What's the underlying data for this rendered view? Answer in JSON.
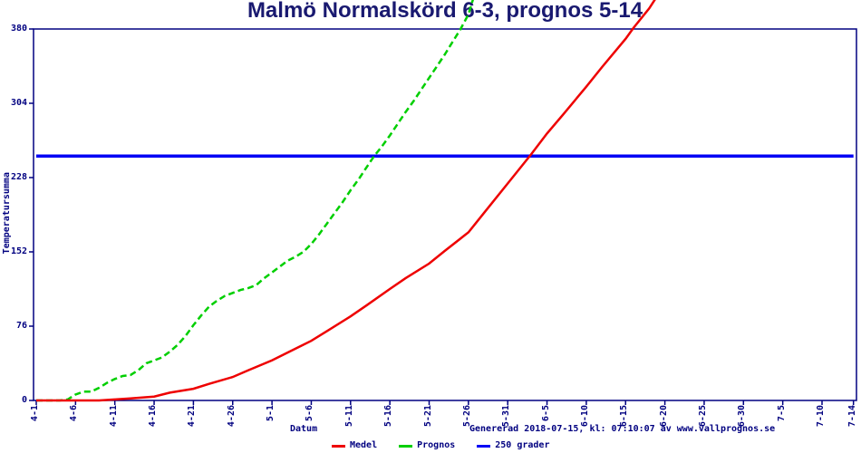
{
  "title": "Malmö Normalskörd 6-3, prognos 5-14",
  "footer": "Genererad 2018-07-15, kl: 07:10:07 av www.vallprognos.se",
  "colors": {
    "title_text": "#191970",
    "axis_and_text": "#000080",
    "medel": "#ee0000",
    "prognos": "#00cf00",
    "threshold": "#0000f5"
  },
  "chart_data": {
    "type": "line",
    "title": "Malmö Normalskörd 6-3, prognos 5-14",
    "xlabel": "Datum",
    "ylabel": "Temperatursumma",
    "ylim": [
      0,
      380
    ],
    "grid": false,
    "legend_position": "bottom",
    "y_ticks": [
      0,
      76,
      152,
      228,
      304,
      380
    ],
    "x_ticks": [
      {
        "label": "4-1",
        "day": 0
      },
      {
        "label": "4-6",
        "day": 5
      },
      {
        "label": "4-11",
        "day": 10
      },
      {
        "label": "4-16",
        "day": 15
      },
      {
        "label": "4-21",
        "day": 20
      },
      {
        "label": "4-26",
        "day": 25
      },
      {
        "label": "5-1",
        "day": 30
      },
      {
        "label": "5-6",
        "day": 35
      },
      {
        "label": "5-11",
        "day": 40
      },
      {
        "label": "5-16",
        "day": 45
      },
      {
        "label": "5-21",
        "day": 50
      },
      {
        "label": "5-26",
        "day": 55
      },
      {
        "label": "5-31",
        "day": 60
      },
      {
        "label": "6-5",
        "day": 65
      },
      {
        "label": "6-10",
        "day": 70
      },
      {
        "label": "6-15",
        "day": 75
      },
      {
        "label": "6-20",
        "day": 80
      },
      {
        "label": "6-25",
        "day": 85
      },
      {
        "label": "6-30",
        "day": 90
      },
      {
        "label": "7-5",
        "day": 95
      },
      {
        "label": "7-10",
        "day": 100
      },
      {
        "label": "7-14",
        "day": 104
      }
    ],
    "x_axis_note": "days counted from 4-1; ticks every 5 days, last interval 4 days",
    "series": [
      {
        "name": "Medel",
        "color": "#ee0000",
        "style": "solid",
        "crosses_250_on": "6-3",
        "points": [
          [
            0,
            0
          ],
          [
            3,
            0
          ],
          [
            6,
            0
          ],
          [
            8,
            0
          ],
          [
            10,
            1
          ],
          [
            12,
            2
          ],
          [
            15,
            4
          ],
          [
            17,
            8
          ],
          [
            20,
            12
          ],
          [
            22,
            17
          ],
          [
            25,
            24
          ],
          [
            27,
            31
          ],
          [
            30,
            41
          ],
          [
            32,
            49
          ],
          [
            35,
            61
          ],
          [
            37,
            71
          ],
          [
            40,
            86
          ],
          [
            42,
            97
          ],
          [
            45,
            114
          ],
          [
            47,
            125
          ],
          [
            50,
            140
          ],
          [
            52,
            153
          ],
          [
            55,
            172
          ],
          [
            57,
            192
          ],
          [
            60,
            222
          ],
          [
            63,
            252
          ],
          [
            65,
            273
          ],
          [
            67,
            292
          ],
          [
            70,
            321
          ],
          [
            72,
            341
          ],
          [
            75,
            370
          ],
          [
            76,
            381
          ],
          [
            78,
            401
          ],
          [
            78.8,
            411
          ]
        ]
      },
      {
        "name": "Prognos",
        "color": "#00cf00",
        "style": "dashed",
        "crosses_250_on": "5-14",
        "points": [
          [
            0,
            0
          ],
          [
            1,
            0
          ],
          [
            2,
            0
          ],
          [
            3,
            0
          ],
          [
            4,
            1
          ],
          [
            5,
            6
          ],
          [
            6,
            9
          ],
          [
            7,
            9
          ],
          [
            8,
            13
          ],
          [
            9,
            18
          ],
          [
            10,
            22
          ],
          [
            11,
            25
          ],
          [
            12,
            26
          ],
          [
            13,
            31
          ],
          [
            14,
            38
          ],
          [
            15,
            41
          ],
          [
            16,
            44
          ],
          [
            17,
            50
          ],
          [
            18,
            57
          ],
          [
            19,
            66
          ],
          [
            20,
            77
          ],
          [
            21,
            87
          ],
          [
            22,
            96
          ],
          [
            23,
            102
          ],
          [
            24,
            107
          ],
          [
            25,
            110
          ],
          [
            26,
            113
          ],
          [
            27,
            115
          ],
          [
            28,
            118
          ],
          [
            29,
            125
          ],
          [
            30,
            131
          ],
          [
            31,
            137
          ],
          [
            32,
            143
          ],
          [
            33,
            147
          ],
          [
            34,
            152
          ],
          [
            35,
            160
          ],
          [
            36,
            170
          ],
          [
            37,
            181
          ],
          [
            38,
            192
          ],
          [
            39,
            203
          ],
          [
            40,
            215
          ],
          [
            41,
            226
          ],
          [
            42,
            238
          ],
          [
            43,
            250
          ],
          [
            44,
            260
          ],
          [
            45,
            271
          ],
          [
            46,
            283
          ],
          [
            47,
            295
          ],
          [
            48,
            306
          ],
          [
            49,
            318
          ],
          [
            50,
            330
          ],
          [
            51,
            342
          ],
          [
            52,
            354
          ],
          [
            53,
            367
          ],
          [
            54,
            380
          ],
          [
            55,
            395
          ],
          [
            55.6,
            411
          ]
        ]
      },
      {
        "name": "250 grader",
        "color": "#0000f5",
        "style": "solid",
        "points": [
          [
            0,
            250
          ],
          [
            104,
            250
          ]
        ]
      }
    ]
  }
}
